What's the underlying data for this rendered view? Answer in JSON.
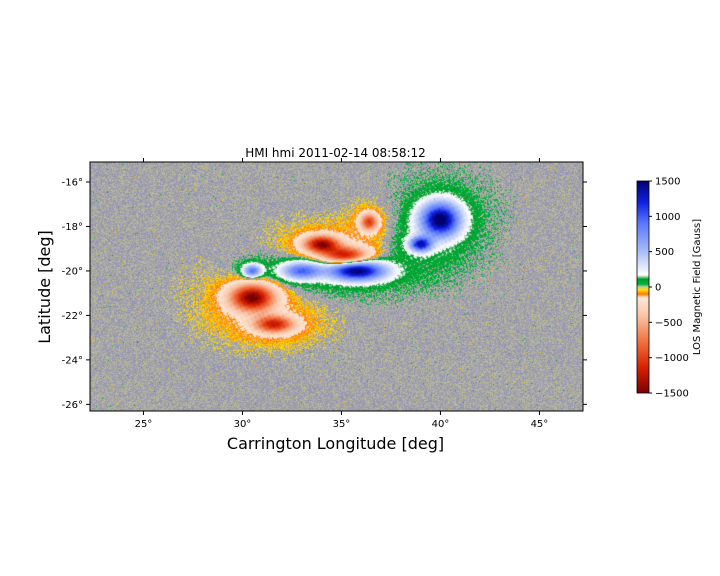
{
  "chart_data": {
    "type": "heatmap",
    "title": "HMI hmi 2011-02-14 08:58:12",
    "xlabel": "Carrington Longitude [deg]",
    "ylabel": "Latitude [deg]",
    "xlim": [
      22.3,
      47.2
    ],
    "ylim": [
      -26.3,
      -15.1
    ],
    "x_ticks": [
      {
        "value": 25,
        "label": "25°"
      },
      {
        "value": 30,
        "label": "30°"
      },
      {
        "value": 35,
        "label": "35°"
      },
      {
        "value": 40,
        "label": "40°"
      },
      {
        "value": 45,
        "label": "45°"
      }
    ],
    "y_ticks": [
      {
        "value": -16,
        "label": "-16°"
      },
      {
        "value": -18,
        "label": "-18°"
      },
      {
        "value": -20,
        "label": "-20°"
      },
      {
        "value": -22,
        "label": "-22°"
      },
      {
        "value": -24,
        "label": "-24°"
      },
      {
        "value": -26,
        "label": "-26°"
      }
    ],
    "colorbar": {
      "label": "LOS Magnetic Field [Gauss]",
      "range": [
        -1500,
        1500
      ],
      "ticks": [
        {
          "value": 1500,
          "label": "1500"
        },
        {
          "value": 1000,
          "label": "1000"
        },
        {
          "value": 500,
          "label": "500"
        },
        {
          "value": 0,
          "label": "0"
        },
        {
          "value": -500,
          "label": "−500"
        },
        {
          "value": -1000,
          "label": "−1000"
        },
        {
          "value": -1500,
          "label": "−1500"
        }
      ],
      "stops": [
        {
          "value": -1500,
          "color": "#7a0000"
        },
        {
          "value": -1150,
          "color": "#d42000"
        },
        {
          "value": -800,
          "color": "#f06a3a"
        },
        {
          "value": -400,
          "color": "#f8c6a8"
        },
        {
          "value": -150,
          "color": "#fbe7d8"
        },
        {
          "value": -100,
          "color": "#ff7a00"
        },
        {
          "value": -40,
          "color": "#ffe000"
        },
        {
          "value": 0,
          "color": "#c8c8a0"
        },
        {
          "value": 40,
          "color": "#00b33c"
        },
        {
          "value": 110,
          "color": "#009a2a"
        },
        {
          "value": 170,
          "color": "#ffffff"
        },
        {
          "value": 500,
          "color": "#a9bdf5"
        },
        {
          "value": 900,
          "color": "#5a78ff"
        },
        {
          "value": 1200,
          "color": "#1020e0"
        },
        {
          "value": 1500,
          "color": "#000070"
        }
      ]
    },
    "regions": [
      {
        "polarity": "negative",
        "lon": 30.5,
        "lat": -21.2,
        "peak": -1450,
        "sx": 1.0,
        "sy": 0.55
      },
      {
        "polarity": "negative",
        "lon": 31.6,
        "lat": -22.4,
        "peak": -1100,
        "sx": 0.9,
        "sy": 0.35
      },
      {
        "polarity": "negative",
        "lon": 34.0,
        "lat": -18.8,
        "peak": -1350,
        "sx": 0.8,
        "sy": 0.35
      },
      {
        "polarity": "negative",
        "lon": 35.2,
        "lat": -19.3,
        "peak": -1150,
        "sx": 1.0,
        "sy": 0.35
      },
      {
        "polarity": "negative",
        "lon": 36.4,
        "lat": -17.8,
        "peak": -950,
        "sx": 0.4,
        "sy": 0.35
      },
      {
        "polarity": "positive",
        "lon": 35.8,
        "lat": -20.0,
        "peak": 1450,
        "sx": 1.3,
        "sy": 0.4
      },
      {
        "polarity": "positive",
        "lon": 33.0,
        "lat": -20.0,
        "peak": 900,
        "sx": 0.9,
        "sy": 0.35
      },
      {
        "polarity": "positive",
        "lon": 30.5,
        "lat": -20.0,
        "peak": 850,
        "sx": 0.4,
        "sy": 0.25
      },
      {
        "polarity": "positive",
        "lon": 40.0,
        "lat": -17.7,
        "peak": 1500,
        "sx": 0.9,
        "sy": 0.7
      },
      {
        "polarity": "positive",
        "lon": 39.0,
        "lat": -18.8,
        "peak": 1200,
        "sx": 0.5,
        "sy": 0.3
      }
    ],
    "grid": false
  }
}
